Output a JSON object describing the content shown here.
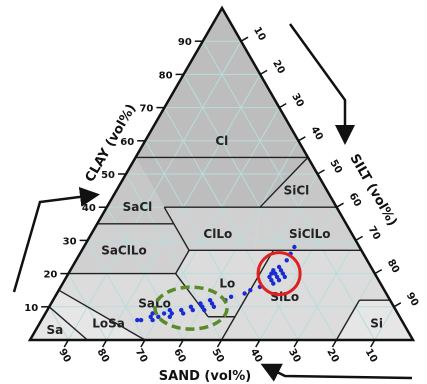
{
  "chart_data": {
    "type": "scatter",
    "subtype": "soil-texture-ternary",
    "axes": {
      "clay": {
        "label": "CLAY (vol%)",
        "ticks": [
          10,
          20,
          30,
          40,
          50,
          60,
          70,
          80,
          90
        ]
      },
      "silt": {
        "label": "SILT (vol%)",
        "ticks": [
          10,
          20,
          30,
          40,
          50,
          60,
          70,
          80,
          90
        ]
      },
      "sand": {
        "label": "SAND (vol%)",
        "ticks": [
          90,
          80,
          70,
          60,
          50,
          40,
          30,
          20,
          10
        ]
      }
    },
    "grid": true,
    "classes": [
      {
        "label": "Cl",
        "fill": "#bdbdbd"
      },
      {
        "label": "SiCl",
        "fill": "#c7c7c7"
      },
      {
        "label": "SaCl",
        "fill": "#c7c7c7"
      },
      {
        "label": "ClLo",
        "fill": "#d0d0d0"
      },
      {
        "label": "SiClLo",
        "fill": "#d0d0d0"
      },
      {
        "label": "SaClLo",
        "fill": "#d0d0d0"
      },
      {
        "label": "Lo",
        "fill": "#dcdcdc"
      },
      {
        "label": "SaLo",
        "fill": "#dcdcdc"
      },
      {
        "label": "SiLo",
        "fill": "#dcdcdc"
      },
      {
        "label": "LoSa",
        "fill": "#e6e6e6"
      },
      {
        "label": "Sa",
        "fill": "#e6e6e6"
      },
      {
        "label": "Si",
        "fill": "#e6e6e6"
      }
    ],
    "series": [
      {
        "color": "#1a2bd6",
        "points": [
          {
            "clay": 20,
            "silt": 54,
            "sand": 26
          },
          {
            "clay": 19,
            "silt": 55,
            "sand": 26
          },
          {
            "clay": 18,
            "silt": 54,
            "sand": 28
          },
          {
            "clay": 21,
            "silt": 55,
            "sand": 24
          },
          {
            "clay": 20,
            "silt": 56,
            "sand": 24
          },
          {
            "clay": 19,
            "silt": 53,
            "sand": 28
          },
          {
            "clay": 18,
            "silt": 56,
            "sand": 26
          },
          {
            "clay": 22,
            "silt": 54,
            "sand": 24
          },
          {
            "clay": 17,
            "silt": 55,
            "sand": 28
          },
          {
            "clay": 20,
            "silt": 53,
            "sand": 27
          },
          {
            "clay": 21,
            "silt": 53,
            "sand": 26
          },
          {
            "clay": 19,
            "silt": 57,
            "sand": 24
          },
          {
            "clay": 24,
            "silt": 55,
            "sand": 21
          },
          {
            "clay": 26,
            "silt": 55,
            "sand": 19
          },
          {
            "clay": 28,
            "silt": 55,
            "sand": 17
          },
          {
            "clay": 14,
            "silt": 49,
            "sand": 37
          },
          {
            "clay": 12,
            "silt": 45,
            "sand": 43
          },
          {
            "clay": 11,
            "silt": 42,
            "sand": 47
          },
          {
            "clay": 10,
            "silt": 40,
            "sand": 50
          },
          {
            "clay": 9,
            "silt": 38,
            "sand": 53
          },
          {
            "clay": 9,
            "silt": 35,
            "sand": 56
          },
          {
            "clay": 8,
            "silt": 33,
            "sand": 59
          },
          {
            "clay": 8,
            "silt": 31,
            "sand": 61
          },
          {
            "clay": 7,
            "silt": 30,
            "sand": 63
          },
          {
            "clay": 7,
            "silt": 28,
            "sand": 65
          },
          {
            "clay": 6,
            "silt": 26,
            "sand": 68
          },
          {
            "clay": 6,
            "silt": 25,
            "sand": 69
          },
          {
            "clay": 10,
            "silt": 43,
            "sand": 47
          },
          {
            "clay": 11,
            "silt": 39,
            "sand": 50
          },
          {
            "clay": 9,
            "silt": 41,
            "sand": 50
          },
          {
            "clay": 8,
            "silt": 36,
            "sand": 56
          },
          {
            "clay": 7,
            "silt": 33,
            "sand": 60
          },
          {
            "clay": 10,
            "silt": 37,
            "sand": 53
          },
          {
            "clay": 9,
            "silt": 32,
            "sand": 59
          },
          {
            "clay": 6,
            "silt": 29,
            "sand": 65
          },
          {
            "clay": 8,
            "silt": 28,
            "sand": 64
          },
          {
            "clay": 12,
            "silt": 41,
            "sand": 47
          },
          {
            "clay": 13,
            "silt": 46,
            "sand": 41
          },
          {
            "clay": 15,
            "silt": 50,
            "sand": 35
          },
          {
            "clay": 16,
            "silt": 52,
            "sand": 32
          }
        ]
      }
    ],
    "annotations": [
      {
        "shape": "circle",
        "style": "solid",
        "color": "#e02020",
        "encloses": "upper point cluster"
      },
      {
        "shape": "ellipse",
        "style": "dashed",
        "color": "#5a8a2a",
        "encloses": "lower point cluster"
      },
      {
        "shape": "arrow",
        "style": "solid",
        "color": "#111111",
        "direction": "along clay axis"
      },
      {
        "shape": "arrow",
        "style": "solid",
        "color": "#111111",
        "direction": "along silt axis"
      },
      {
        "shape": "arrow",
        "style": "solid",
        "color": "#111111",
        "direction": "along sand axis"
      }
    ]
  }
}
